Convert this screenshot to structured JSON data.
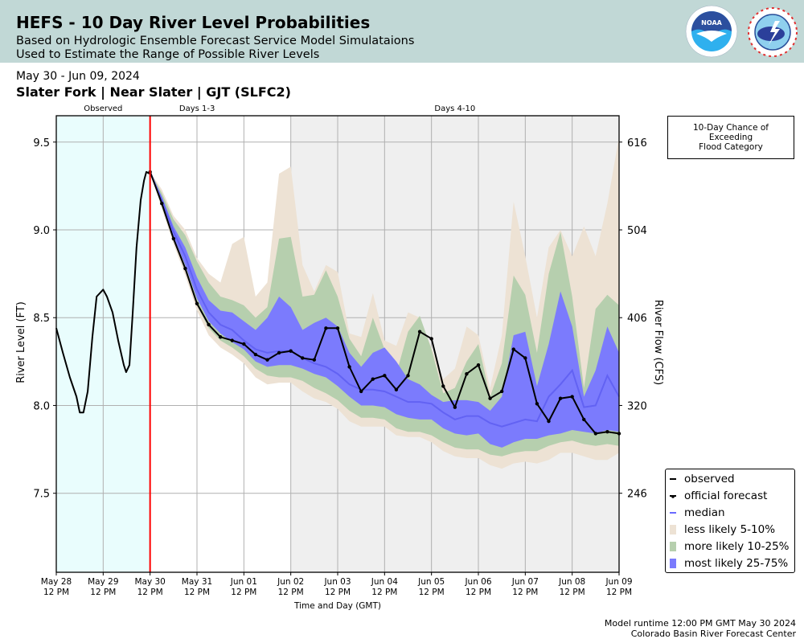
{
  "header": {
    "title": "HEFS - 10 Day River Level Probabilities",
    "subtitle_line1": "Based on Hydrologic Ensemble Forecast Service Model Simulataions",
    "subtitle_line2": "Used to Estimate the Range of Possible River Levels",
    "logos": [
      "noaa-logo",
      "nws-logo"
    ],
    "noaa_text": "NOAA"
  },
  "date_range": "May 30 - Jun 09, 2024",
  "station": "Slater Fork | Near Slater | GJT (SLFC2)",
  "flood_box": {
    "line1": "10-Day Chance of",
    "line2": "Exceeding",
    "line3": "Flood Category"
  },
  "footer": {
    "runtime": "Model runtime 12:00 PM GMT May 30 2024",
    "center": "Colorado Basin River Forecast Center"
  },
  "colors": {
    "header_bg": "#c1d8d6",
    "observed_bg": "#e9fdfd",
    "days4_10_bg": "#efefef",
    "less_likely": "#ede2d4",
    "more_likely": "#b6cfae",
    "most_likely": "#7b7bfd",
    "median": "#5c5cf0",
    "forecast_start": "#ff0000",
    "grid": "#b0b0b0"
  },
  "chart_data": {
    "type": "area",
    "title": "HEFS - 10 Day River Level Probabilities",
    "xlabel": "Time and Day (GMT)",
    "ylabel": "River Level (FT)",
    "ylabel_right": "River Flow (CFS)",
    "x_units": "days since May 28 12 PM GMT",
    "xlim": [
      0,
      12
    ],
    "ylim": [
      7.05,
      9.65
    ],
    "grid": true,
    "legend_position": "bottom-right",
    "x_ticks": [
      {
        "x": 0,
        "line1": "May 28",
        "line2": "12 PM"
      },
      {
        "x": 1,
        "line1": "May 29",
        "line2": "12 PM"
      },
      {
        "x": 2,
        "line1": "May 30",
        "line2": "12 PM"
      },
      {
        "x": 3,
        "line1": "May 31",
        "line2": "12 PM"
      },
      {
        "x": 4,
        "line1": "Jun 01",
        "line2": "12 PM"
      },
      {
        "x": 5,
        "line1": "Jun 02",
        "line2": "12 PM"
      },
      {
        "x": 6,
        "line1": "Jun 03",
        "line2": "12 PM"
      },
      {
        "x": 7,
        "line1": "Jun 04",
        "line2": "12 PM"
      },
      {
        "x": 8,
        "line1": "Jun 05",
        "line2": "12 PM"
      },
      {
        "x": 9,
        "line1": "Jun 06",
        "line2": "12 PM"
      },
      {
        "x": 10,
        "line1": "Jun 07",
        "line2": "12 PM"
      },
      {
        "x": 11,
        "line1": "Jun 08",
        "line2": "12 PM"
      },
      {
        "x": 12,
        "line1": "Jun 09",
        "line2": "12 PM"
      }
    ],
    "y_ticks": [
      7.5,
      8.0,
      8.5,
      9.0,
      9.5
    ],
    "y_tick_labels": [
      "7.5",
      "8.0",
      "8.5",
      "9.0",
      "9.5"
    ],
    "y_right_ticks": [
      {
        "level": 7.5,
        "label": "246"
      },
      {
        "level": 8.0,
        "label": "320"
      },
      {
        "level": 8.5,
        "label": "406"
      },
      {
        "level": 9.0,
        "label": "504"
      },
      {
        "level": 9.5,
        "label": "616"
      }
    ],
    "periods": [
      {
        "label": "Observed",
        "start": 0,
        "end": 2
      },
      {
        "label": "Days 1-3",
        "start": 2,
        "end": 5
      },
      {
        "label": "Days 4-10",
        "start": 5,
        "end": 12
      }
    ],
    "forecast_start": 2,
    "legend": [
      {
        "key": "observed",
        "label": "observed"
      },
      {
        "key": "forecast",
        "label": "official forecast"
      },
      {
        "key": "median",
        "label": "median"
      },
      {
        "key": "less",
        "label": "less likely 5-10%"
      },
      {
        "key": "more",
        "label": "more likely 10-25%"
      },
      {
        "key": "most",
        "label": "most likely 25-75%"
      }
    ],
    "observed": {
      "x": [
        0,
        0.14,
        0.29,
        0.43,
        0.5,
        0.58,
        0.67,
        0.77,
        0.86,
        1.0,
        1.08,
        1.2,
        1.32,
        1.44,
        1.49,
        1.56,
        1.63,
        1.71,
        1.8,
        1.87,
        1.92,
        1.99
      ],
      "y": [
        8.44,
        8.3,
        8.16,
        8.05,
        7.96,
        7.96,
        8.08,
        8.39,
        8.62,
        8.66,
        8.62,
        8.53,
        8.37,
        8.23,
        8.19,
        8.23,
        8.53,
        8.9,
        9.17,
        9.28,
        9.33,
        9.32
      ]
    },
    "official_forecast": {
      "x": [
        2.0,
        2.25,
        2.5,
        2.75,
        3.0,
        3.25,
        3.5,
        3.75,
        4.0,
        4.25,
        4.5,
        4.75,
        5.0,
        5.25,
        5.5,
        5.75,
        6.0,
        6.25,
        6.5,
        6.75,
        7.0,
        7.25,
        7.5,
        7.75,
        8.0,
        8.25,
        8.5,
        8.75,
        9.0,
        9.25,
        9.5,
        9.75,
        10.0,
        10.25,
        10.5,
        10.75,
        11.0,
        11.25,
        11.5,
        11.75,
        12.0
      ],
      "y": [
        9.33,
        9.15,
        8.95,
        8.78,
        8.58,
        8.46,
        8.39,
        8.37,
        8.35,
        8.29,
        8.26,
        8.3,
        8.31,
        8.27,
        8.26,
        8.44,
        8.44,
        8.22,
        8.08,
        8.15,
        8.17,
        8.09,
        8.17,
        8.42,
        8.38,
        8.11,
        7.99,
        8.18,
        8.23,
        8.04,
        8.08,
        8.32,
        8.27,
        8.01,
        7.91,
        8.04,
        8.05,
        7.92,
        7.84,
        7.85,
        7.84
      ]
    },
    "bands_x": [
      2.0,
      2.25,
      2.5,
      2.75,
      3.0,
      3.25,
      3.5,
      3.75,
      4.0,
      4.25,
      4.5,
      4.75,
      5.0,
      5.25,
      5.5,
      5.75,
      6.0,
      6.25,
      6.5,
      6.75,
      7.0,
      7.25,
      7.5,
      7.75,
      8.0,
      8.25,
      8.5,
      8.75,
      9.0,
      9.25,
      9.5,
      9.75,
      10.0,
      10.25,
      10.5,
      10.75,
      11.0,
      11.25,
      11.5,
      11.75,
      12.0
    ],
    "median": [
      9.33,
      9.17,
      8.99,
      8.85,
      8.66,
      8.53,
      8.46,
      8.43,
      8.37,
      8.32,
      8.3,
      8.31,
      8.31,
      8.27,
      8.24,
      8.22,
      8.18,
      8.12,
      8.09,
      8.09,
      8.08,
      8.05,
      8.02,
      8.02,
      8.01,
      7.96,
      7.92,
      7.94,
      7.94,
      7.9,
      7.88,
      7.9,
      7.92,
      7.91,
      8.05,
      8.12,
      8.2,
      7.99,
      8.0,
      8.17,
      8.05
    ],
    "most_likely": {
      "low": [
        9.33,
        9.14,
        8.96,
        8.8,
        8.61,
        8.48,
        8.41,
        8.36,
        8.32,
        8.25,
        8.22,
        8.23,
        8.23,
        8.21,
        8.18,
        8.16,
        8.11,
        8.05,
        8.0,
        8.0,
        7.99,
        7.95,
        7.93,
        7.92,
        7.92,
        7.87,
        7.84,
        7.83,
        7.84,
        7.78,
        7.76,
        7.79,
        7.81,
        7.81,
        7.83,
        7.84,
        7.86,
        7.85,
        7.84,
        7.86,
        7.85
      ],
      "high": [
        9.33,
        9.19,
        9.02,
        8.9,
        8.73,
        8.6,
        8.54,
        8.53,
        8.48,
        8.43,
        8.5,
        8.62,
        8.56,
        8.43,
        8.47,
        8.5,
        8.45,
        8.3,
        8.22,
        8.3,
        8.33,
        8.25,
        8.15,
        8.12,
        8.06,
        8.02,
        8.03,
        8.03,
        8.02,
        7.97,
        8.05,
        8.4,
        8.42,
        8.11,
        8.35,
        8.65,
        8.45,
        8.05,
        8.2,
        8.45,
        8.3
      ]
    },
    "more_likely": {
      "low": [
        9.33,
        9.13,
        8.94,
        8.77,
        8.57,
        8.44,
        8.37,
        8.33,
        8.28,
        8.21,
        8.17,
        8.16,
        8.16,
        8.14,
        8.1,
        8.07,
        8.03,
        7.97,
        7.93,
        7.93,
        7.92,
        7.87,
        7.85,
        7.85,
        7.83,
        7.79,
        7.76,
        7.75,
        7.75,
        7.72,
        7.71,
        7.73,
        7.74,
        7.74,
        7.77,
        7.79,
        7.8,
        7.78,
        7.77,
        7.78,
        7.77
      ],
      "high": [
        9.33,
        9.21,
        9.06,
        8.97,
        8.82,
        8.7,
        8.62,
        8.6,
        8.57,
        8.5,
        8.56,
        8.95,
        8.96,
        8.62,
        8.63,
        8.77,
        8.62,
        8.38,
        8.28,
        8.5,
        8.32,
        8.18,
        8.42,
        8.51,
        8.32,
        8.07,
        8.1,
        8.25,
        8.35,
        8.05,
        8.24,
        8.74,
        8.63,
        8.3,
        8.75,
        8.99,
        8.62,
        8.1,
        8.55,
        8.63,
        8.57
      ]
    },
    "less_likely": {
      "low": [
        9.33,
        9.12,
        8.92,
        8.74,
        8.54,
        8.4,
        8.33,
        8.29,
        8.24,
        8.16,
        8.12,
        8.13,
        8.13,
        8.08,
        8.04,
        8.02,
        7.98,
        7.91,
        7.88,
        7.88,
        7.88,
        7.83,
        7.82,
        7.82,
        7.79,
        7.74,
        7.71,
        7.7,
        7.7,
        7.66,
        7.64,
        7.67,
        7.68,
        7.67,
        7.69,
        7.73,
        7.73,
        7.71,
        7.69,
        7.69,
        7.73
      ],
      "high": [
        9.33,
        9.23,
        9.08,
        9.0,
        8.84,
        8.75,
        8.7,
        8.92,
        8.96,
        8.62,
        8.7,
        9.32,
        9.36,
        8.8,
        8.65,
        8.8,
        8.76,
        8.41,
        8.39,
        8.64,
        8.37,
        8.34,
        8.53,
        8.5,
        8.33,
        8.15,
        8.21,
        8.45,
        8.4,
        8.1,
        8.4,
        9.16,
        8.85,
        8.5,
        8.9,
        9.0,
        8.85,
        9.02,
        8.85,
        9.15,
        9.53
      ]
    }
  }
}
